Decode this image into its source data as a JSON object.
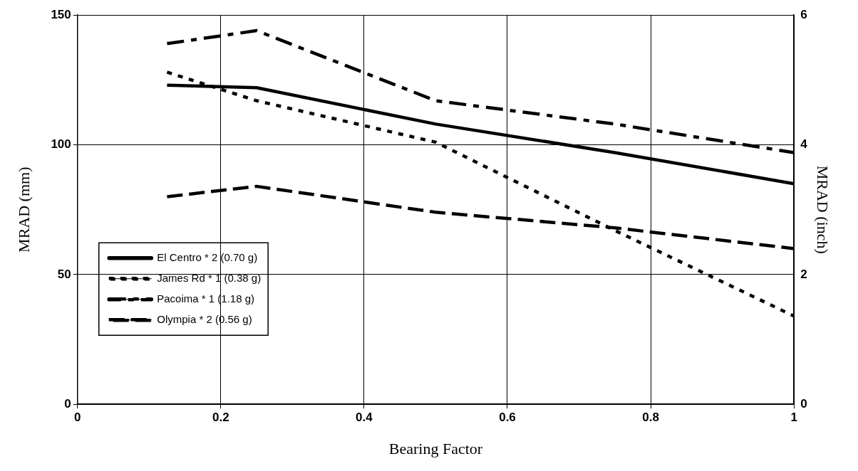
{
  "chart_data": {
    "type": "line",
    "xlabel": "Bearing Factor",
    "ylabel": "MRAD (mm)",
    "y2label": "MRAD (inch)",
    "x": [
      0.125,
      0.25,
      0.5,
      0.75,
      1
    ],
    "xlim": [
      0,
      1
    ],
    "xticks": [
      0,
      0.2,
      0.4,
      0.6,
      0.8,
      1
    ],
    "ylim": [
      0,
      150
    ],
    "yticks": [
      0,
      50,
      100,
      150
    ],
    "y2lim": [
      0,
      6
    ],
    "y2ticks": [
      0,
      2,
      4,
      6
    ],
    "grid": true,
    "legend": "left",
    "marker": "none",
    "series": [
      {
        "name": "El Centro * 2 (0.70 g)",
        "color": "#000000",
        "line_style": "solid",
        "values": [
          123,
          122,
          108,
          97,
          85
        ]
      },
      {
        "name": "James Rd * 1 (0.38 g)",
        "color": "#000000",
        "line_style": "dotted",
        "values": [
          128,
          117,
          101,
          67,
          34
        ]
      },
      {
        "name": "Pacoima * 1 (1.18 g)",
        "color": "#000000",
        "line_style": "dashdot",
        "values": [
          139,
          144,
          117,
          108,
          97
        ]
      },
      {
        "name": "Olympia * 2 (0.56 g)",
        "color": "#000000",
        "line_style": "dashed",
        "values": [
          80,
          84,
          74,
          68,
          60
        ]
      }
    ]
  }
}
